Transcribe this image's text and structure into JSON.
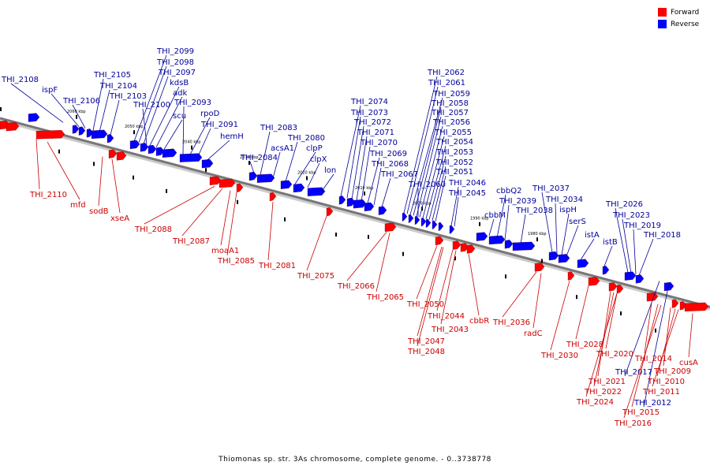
{
  "legend": {
    "forward_label": "Forward",
    "reverse_label": "Reverse",
    "forward_color": "#ff0000",
    "reverse_color": "#0000ff"
  },
  "caption": "Thiomonas sp. str. 3As chromosome, complete genome. - 0..3738778",
  "axis": {
    "ticks": [
      {
        "kbp": 2060,
        "label": "2060 kbp"
      },
      {
        "kbp": 2050,
        "label": "2050 kbp"
      },
      {
        "kbp": 2040,
        "label": "2040 kbp"
      },
      {
        "kbp": 2030,
        "label": "2030 kbp"
      },
      {
        "kbp": 2020,
        "label": "2020 kbp"
      },
      {
        "kbp": 2010,
        "label": "2010 kbp"
      },
      {
        "kbp": 2000,
        "label": "2000 kbp"
      },
      {
        "kbp": 1990,
        "label": "1990 kbp"
      },
      {
        "kbp": 1980,
        "label": "1980 kbp"
      }
    ]
  },
  "reverse_genes": [
    "THI_2108",
    "ispF",
    "THI_2106",
    "THI_2105",
    "THI_2104",
    "THI_2103",
    "THI_2099",
    "THI_2098",
    "THI_2097",
    "kdsB",
    "adk",
    "THI_2100",
    "scu",
    "THI_2093",
    "rpoD",
    "THI_2091",
    "hemH",
    "THI_2084",
    "THI_2083",
    "acsA1",
    "THI_2080",
    "clpP",
    "clpX",
    "lon",
    "THI_2074",
    "THI_2073",
    "THI_2072",
    "THI_2071",
    "THI_2070",
    "THI_2069",
    "THI_2068",
    "THI_2067",
    "THI_2062",
    "THI_2061",
    "THI_2059",
    "THI_2058",
    "THI_2057",
    "THI_2056",
    "THI_2055",
    "THI_2054",
    "THI_2053",
    "THI_2052",
    "THI_2051",
    "THI_2060",
    "THI_2046",
    "THI_2045",
    "cbbQ2",
    "THI_2039",
    "cbbM",
    "THI_2038",
    "THI_2037",
    "THI_2034",
    "ispH",
    "serS",
    "istA",
    "istB",
    "THI_2026",
    "THI_2023",
    "THI_2019",
    "THI_2018",
    "THI_2017",
    "THI_2012"
  ],
  "forward_genes": [
    "THI_2110",
    "mfd",
    "sodB",
    "xseA",
    "THI_2088",
    "THI_2087",
    "moaA1",
    "THI_2085",
    "THI_2081",
    "THI_2075",
    "THI_2066",
    "THI_2065",
    "THI_2050",
    "THI_2044",
    "THI_2043",
    "THI_2047",
    "THI_2048",
    "cbbR",
    "THI_2036",
    "radC",
    "THI_2030",
    "THI_2028",
    "THI_2020",
    "THI_2021",
    "THI_2022",
    "THI_2024",
    "THI_2014",
    "THI_2009",
    "THI_2010",
    "THI_2011",
    "THI_2015",
    "THI_2016",
    "cusA"
  ]
}
